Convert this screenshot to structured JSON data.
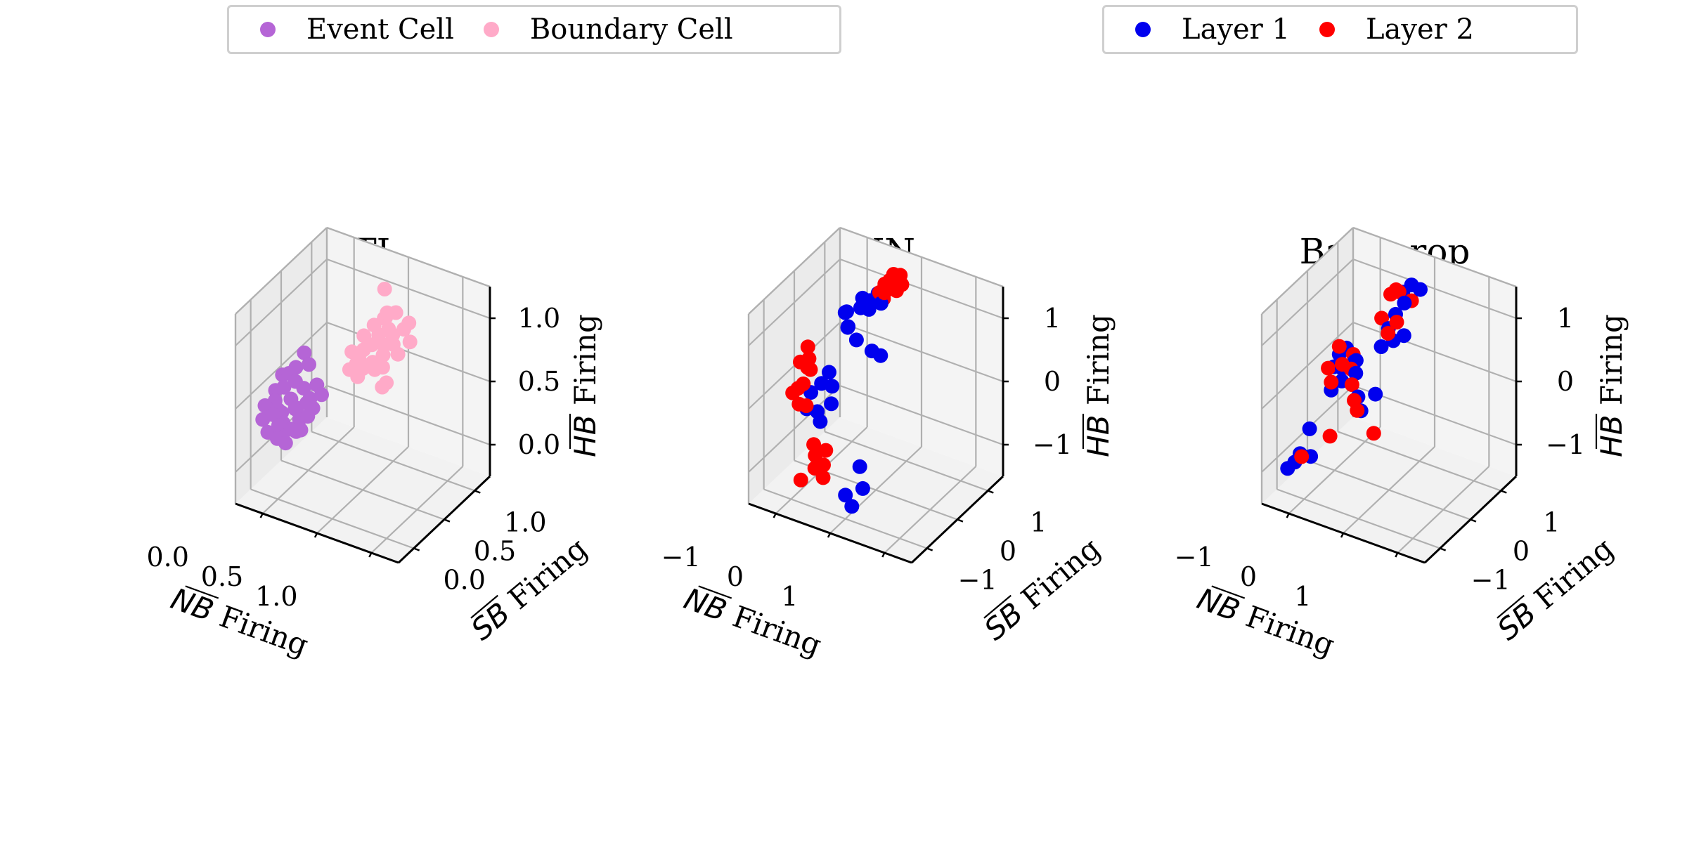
{
  "legends": {
    "left": [
      {
        "label": "Event Cell",
        "color": "#b565d6"
      },
      {
        "label": "Boundary Cell",
        "color": "#ffaac8"
      }
    ],
    "right": [
      {
        "label": "Layer 1",
        "color": "#0000ee"
      },
      {
        "label": "Layer 2",
        "color": "#ff0000"
      }
    ]
  },
  "chart_data": [
    {
      "type": "scatter",
      "title": "MTL",
      "xlabel": "NB Firing",
      "ylabel": "SB Firing",
      "zlabel": "HB Firing",
      "xlim": [
        0,
        1
      ],
      "ylim": [
        0,
        1
      ],
      "zlim": [
        0,
        1
      ],
      "x_ticks": [
        "0.0",
        "0.5",
        "1.0"
      ],
      "y_ticks": [
        "0.0",
        "0.5",
        "1.0"
      ],
      "z_ticks": [
        "0.0",
        "0.5",
        "1.0"
      ],
      "grid": true,
      "series": [
        {
          "name": "Event Cell",
          "color": "#b565d6",
          "points": [
            [
              0.15,
              0.2,
              0.45
            ],
            [
              0.2,
              0.25,
              0.5
            ],
            [
              0.18,
              0.15,
              0.4
            ],
            [
              0.25,
              0.3,
              0.55
            ],
            [
              0.12,
              0.22,
              0.48
            ],
            [
              0.22,
              0.18,
              0.38
            ],
            [
              0.3,
              0.28,
              0.52
            ],
            [
              0.1,
              0.12,
              0.42
            ],
            [
              0.16,
              0.3,
              0.6
            ],
            [
              0.28,
              0.2,
              0.44
            ],
            [
              0.24,
              0.24,
              0.47
            ],
            [
              0.14,
              0.28,
              0.53
            ],
            [
              0.2,
              0.1,
              0.36
            ],
            [
              0.32,
              0.32,
              0.58
            ],
            [
              0.26,
              0.14,
              0.41
            ],
            [
              0.18,
              0.34,
              0.62
            ],
            [
              0.08,
              0.18,
              0.46
            ],
            [
              0.34,
              0.24,
              0.5
            ],
            [
              0.22,
              0.26,
              0.45
            ],
            [
              0.12,
              0.14,
              0.35
            ],
            [
              0.26,
              0.34,
              0.66
            ],
            [
              0.16,
              0.22,
              0.43
            ],
            [
              0.3,
              0.18,
              0.4
            ],
            [
              0.2,
              0.3,
              0.57
            ],
            [
              0.24,
              0.12,
              0.34
            ],
            [
              0.1,
              0.26,
              0.51
            ],
            [
              0.28,
              0.28,
              0.49
            ],
            [
              0.18,
              0.2,
              0.39
            ],
            [
              0.36,
              0.3,
              0.55
            ],
            [
              0.14,
              0.16,
              0.44
            ],
            [
              0.22,
              0.36,
              0.7
            ],
            [
              0.32,
              0.22,
              0.46
            ],
            [
              0.12,
              0.3,
              0.58
            ],
            [
              0.26,
              0.2,
              0.37
            ],
            [
              0.2,
              0.16,
              0.33
            ]
          ]
        },
        {
          "name": "Boundary Cell",
          "color": "#ffaac8",
          "points": [
            [
              0.45,
              0.55,
              0.65
            ],
            [
              0.5,
              0.6,
              0.72
            ],
            [
              0.55,
              0.52,
              0.68
            ],
            [
              0.6,
              0.65,
              0.78
            ],
            [
              0.48,
              0.48,
              0.6
            ],
            [
              0.52,
              0.7,
              0.82
            ],
            [
              0.58,
              0.58,
              0.7
            ],
            [
              0.62,
              0.62,
              0.75
            ],
            [
              0.44,
              0.62,
              0.74
            ],
            [
              0.56,
              0.66,
              0.88
            ],
            [
              0.5,
              0.5,
              0.64
            ],
            [
              0.64,
              0.7,
              0.8
            ],
            [
              0.46,
              0.58,
              0.69
            ],
            [
              0.54,
              0.56,
              0.62
            ],
            [
              0.6,
              0.54,
              0.66
            ],
            [
              0.42,
              0.5,
              0.61
            ],
            [
              0.58,
              0.72,
              0.86
            ],
            [
              0.52,
              0.64,
              0.76
            ],
            [
              0.66,
              0.6,
              0.72
            ],
            [
              0.48,
              0.66,
              0.79
            ],
            [
              0.62,
              0.5,
              0.58
            ],
            [
              0.56,
              0.62,
              0.73
            ],
            [
              0.7,
              0.66,
              0.77
            ],
            [
              0.5,
              0.74,
              0.95
            ],
            [
              0.4,
              0.56,
              0.67
            ],
            [
              0.54,
              0.68,
              0.84
            ],
            [
              0.6,
              0.58,
              0.56
            ],
            [
              0.66,
              0.72,
              0.83
            ],
            [
              0.44,
              0.54,
              0.63
            ],
            [
              0.58,
              0.64,
              0.81
            ]
          ]
        }
      ]
    },
    {
      "type": "scatter",
      "title": "ENN",
      "xlabel": "NB Firing",
      "ylabel": "SB Firing",
      "zlabel": "HB Firing",
      "xlim": [
        -1.2,
        1.2
      ],
      "ylim": [
        -1.2,
        1.2
      ],
      "zlim": [
        -1.2,
        1.2
      ],
      "x_ticks": [
        "−1",
        "0",
        "1"
      ],
      "y_ticks": [
        "−1",
        "0",
        "1"
      ],
      "z_ticks": [
        "−1",
        "0",
        "1"
      ],
      "grid": true,
      "series": [
        {
          "name": "Layer 1",
          "color": "#0000ee",
          "points": [
            [
              -0.9,
              0.8,
              0.4
            ],
            [
              -0.8,
              0.7,
              0.3
            ],
            [
              -0.7,
              0.85,
              0.5
            ],
            [
              -0.6,
              0.9,
              0.6
            ],
            [
              -0.75,
              0.6,
              0.35
            ],
            [
              -0.85,
              0.75,
              0.45
            ],
            [
              -0.55,
              0.8,
              0.55
            ],
            [
              -0.65,
              0.65,
              0.2
            ],
            [
              -0.5,
              0.95,
              0.7
            ],
            [
              -0.45,
              0.7,
              0.1
            ],
            [
              -0.4,
              0.85,
              0.65
            ],
            [
              -0.7,
              0.9,
              0.6
            ],
            [
              -0.35,
              0.75,
              0.05
            ],
            [
              -0.9,
              -0.1,
              -0.2
            ],
            [
              -0.8,
              0.0,
              -0.1
            ],
            [
              -0.85,
              -0.3,
              -0.3
            ],
            [
              -0.7,
              0.1,
              -0.15
            ],
            [
              -0.75,
              -0.2,
              -0.35
            ],
            [
              -0.6,
              -0.1,
              -0.25
            ],
            [
              -0.8,
              0.2,
              -0.05
            ],
            [
              -0.65,
              -0.3,
              -0.4
            ],
            [
              0.0,
              -0.8,
              -0.9
            ],
            [
              0.2,
              -0.7,
              -0.8
            ],
            [
              0.1,
              -0.6,
              -0.6
            ],
            [
              0.15,
              -0.9,
              -0.95
            ]
          ]
        },
        {
          "name": "Layer 2",
          "color": "#ff0000",
          "points": [
            [
              -0.4,
              0.95,
              0.85
            ],
            [
              -0.3,
              0.9,
              0.95
            ],
            [
              -0.2,
              1.0,
              1.0
            ],
            [
              -0.35,
              0.85,
              0.8
            ],
            [
              -0.25,
              0.95,
              0.9
            ],
            [
              -0.45,
              0.9,
              0.75
            ],
            [
              -0.3,
              1.0,
              0.98
            ],
            [
              -0.2,
              0.9,
              0.85
            ],
            [
              -0.15,
              0.95,
              0.92
            ],
            [
              -0.38,
              0.88,
              0.7
            ],
            [
              -1.0,
              -0.2,
              0.2
            ],
            [
              -0.95,
              -0.1,
              0.1
            ],
            [
              -0.9,
              -0.3,
              0.0
            ],
            [
              -1.0,
              -0.4,
              -0.1
            ],
            [
              -0.85,
              -0.2,
              0.15
            ],
            [
              -0.95,
              -0.35,
              -0.05
            ],
            [
              -0.9,
              -0.15,
              0.25
            ],
            [
              -0.8,
              -0.4,
              -0.2
            ],
            [
              -1.0,
              0.0,
              0.3
            ],
            [
              -0.85,
              -0.5,
              -0.15
            ],
            [
              -0.5,
              -0.7,
              -0.6
            ],
            [
              -0.4,
              -0.6,
              -0.55
            ],
            [
              -0.45,
              -0.8,
              -0.7
            ],
            [
              -0.35,
              -0.75,
              -0.65
            ],
            [
              -0.55,
              -0.65,
              -0.5
            ],
            [
              -0.3,
              -0.85,
              -0.75
            ],
            [
              -0.6,
              -0.9,
              -0.85
            ]
          ]
        }
      ]
    },
    {
      "type": "scatter",
      "title": "Backprop",
      "xlabel": "NB Firing",
      "ylabel": "SB Firing",
      "zlabel": "HB Firing",
      "xlim": [
        -1.2,
        1.2
      ],
      "ylim": [
        -1.2,
        1.2
      ],
      "zlim": [
        -1.2,
        1.2
      ],
      "x_ticks": [
        "−1",
        "0",
        "1"
      ],
      "y_ticks": [
        "−1",
        "0",
        "1"
      ],
      "z_ticks": [
        "−1",
        "0",
        "1"
      ],
      "grid": true,
      "series": [
        {
          "name": "Layer 1",
          "color": "#0000ee",
          "points": [
            [
              -0.3,
              0.9,
              0.8
            ],
            [
              -0.2,
              0.95,
              0.9
            ],
            [
              -0.1,
              1.0,
              0.85
            ],
            [
              -0.25,
              0.85,
              0.7
            ],
            [
              -0.35,
              0.8,
              0.55
            ],
            [
              -0.4,
              0.7,
              0.4
            ],
            [
              -0.3,
              0.65,
              0.3
            ],
            [
              -0.45,
              0.6,
              0.2
            ],
            [
              -0.2,
              0.75,
              0.35
            ],
            [
              -0.9,
              0.3,
              0.1
            ],
            [
              -0.8,
              0.2,
              0.0
            ],
            [
              -0.85,
              0.4,
              0.15
            ],
            [
              -0.75,
              0.1,
              -0.1
            ],
            [
              -0.7,
              0.35,
              0.05
            ],
            [
              -0.95,
              0.25,
              -0.05
            ],
            [
              -0.6,
              0.2,
              0.0
            ],
            [
              -0.85,
              0.0,
              -0.2
            ],
            [
              -0.65,
              0.3,
              0.1
            ],
            [
              -0.4,
              -0.1,
              -0.1
            ],
            [
              -0.3,
              -0.2,
              -0.2
            ],
            [
              -0.2,
              0.0,
              -0.05
            ],
            [
              -1.0,
              -0.3,
              -0.6
            ],
            [
              -1.1,
              -0.7,
              -0.95
            ],
            [
              -1.05,
              -0.6,
              -0.9
            ],
            [
              -1.0,
              -0.55,
              -0.8
            ],
            [
              -0.9,
              -0.45,
              -0.85
            ]
          ]
        },
        {
          "name": "Layer 2",
          "color": "#ff0000",
          "points": [
            [
              -0.4,
              0.9,
              0.8
            ],
            [
              -0.3,
              0.8,
              0.85
            ],
            [
              -0.2,
              0.95,
              0.7
            ],
            [
              -0.5,
              0.7,
              0.5
            ],
            [
              -0.45,
              0.85,
              0.75
            ],
            [
              -0.35,
              0.6,
              0.4
            ],
            [
              -0.25,
              0.65,
              0.55
            ],
            [
              -0.9,
              0.3,
              0.2
            ],
            [
              -0.8,
              0.2,
              0.05
            ],
            [
              -0.85,
              0.0,
              -0.1
            ],
            [
              -0.75,
              0.4,
              0.1
            ],
            [
              -0.95,
              0.1,
              0.0
            ],
            [
              -0.7,
              0.25,
              0.0
            ],
            [
              -0.6,
              0.1,
              -0.1
            ],
            [
              -0.4,
              -0.2,
              -0.1
            ],
            [
              -0.3,
              -0.3,
              -0.15
            ],
            [
              0.0,
              -0.4,
              -0.3
            ],
            [
              -0.7,
              -0.3,
              -0.6
            ],
            [
              -1.0,
              -0.5,
              -0.85
            ],
            [
              -0.95,
              -0.6,
              -0.8
            ]
          ]
        }
      ]
    }
  ]
}
